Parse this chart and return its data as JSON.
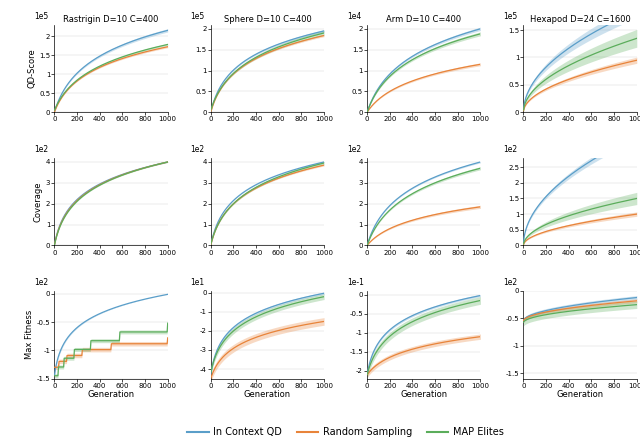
{
  "cols": [
    "Rastrigin D=10 C=400",
    "Sphere D=10 C=400",
    "Arm D=10 C=400",
    "Hexapod D=24 C=1600"
  ],
  "rows": [
    "QD-Score",
    "Coverage",
    "Max Fitness"
  ],
  "col_titles": [
    "Rastrigin D−10 C−40⁥0",
    "Sphere D−10 C−40⁥0",
    "Arm D−10 C−40⁥0",
    "Hexapod D−24 C−1600"
  ],
  "row_scales": [
    [
      "1e5",
      "1e5",
      "1e4",
      "1e5"
    ],
    [
      "1e2",
      "1e2",
      "1e2",
      "1e2"
    ],
    [
      "1e2",
      "1e1",
      "1e-1",
      "1e2"
    ]
  ],
  "ylims": [
    [
      [
        0.0,
        2.3
      ],
      [
        0.0,
        2.1
      ],
      [
        0.0,
        2.1
      ],
      [
        0.0,
        1.6
      ]
    ],
    [
      [
        0.0,
        4.2
      ],
      [
        0.0,
        4.2
      ],
      [
        0.0,
        4.2
      ],
      [
        0.0,
        2.8
      ]
    ],
    [
      [
        -1.5,
        0.05
      ],
      [
        -4.5,
        0.1
      ],
      [
        -2.2,
        0.1
      ],
      [
        -1.6,
        0.0
      ]
    ]
  ],
  "yticks": [
    [
      [
        0.0,
        0.5,
        1.0,
        1.5,
        2.0
      ],
      [
        0.0,
        0.5,
        1.0,
        1.5,
        2.0
      ],
      [
        0.0,
        0.5,
        1.0,
        1.5,
        2.0
      ],
      [
        0.0,
        0.5,
        1.0,
        1.5
      ]
    ],
    [
      [
        0.0,
        1.0,
        2.0,
        3.0,
        4.0
      ],
      [
        0.0,
        1.0,
        2.0,
        3.0,
        4.0
      ],
      [
        0.0,
        1.0,
        2.0,
        3.0,
        4.0
      ],
      [
        0.0,
        0.5,
        1.0,
        1.5,
        2.0,
        2.5
      ]
    ],
    [
      [
        -1.5,
        -1.0,
        -0.5,
        0.0
      ],
      [
        -4.0,
        -3.0,
        -2.0,
        -1.0,
        0.0
      ],
      [
        -2.0,
        -1.5,
        -1.0,
        -0.5,
        0.0
      ],
      [
        -1.5,
        -1.0,
        -0.5,
        0.0
      ]
    ]
  ],
  "colors": {
    "blue": "#5A9EC9",
    "orange": "#E8843A",
    "green": "#5BAD5B"
  },
  "legend_labels": [
    "In Context QD",
    "Random Sampling",
    "MAP Elites"
  ],
  "x_max": 1000
}
